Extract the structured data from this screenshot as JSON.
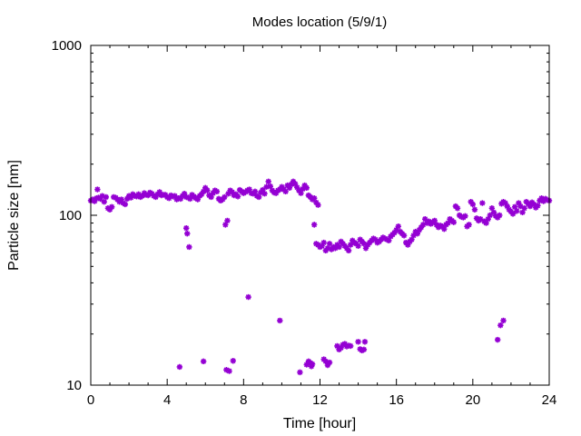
{
  "chart_data": {
    "type": "scatter",
    "title": "Modes location (5/9/1)",
    "xlabel": "Time [hour]",
    "ylabel": "Particle size [nm]",
    "xlim": [
      0,
      24
    ],
    "ylim": [
      10,
      1000
    ],
    "y_scale": "log",
    "grid": false,
    "x_ticks": [
      0,
      4,
      8,
      12,
      16,
      20,
      24
    ],
    "x_tick_labels": [
      "0",
      "4",
      "8",
      "12",
      "16",
      "20",
      "24"
    ],
    "y_ticks": [
      10,
      100,
      1000
    ],
    "y_tick_labels": [
      "10",
      "100",
      "1000"
    ],
    "series": [
      {
        "color": "#9400d3",
        "marker": "star",
        "points": [
          [
            0.0,
            122
          ],
          [
            0.1,
            124
          ],
          [
            0.2,
            121
          ],
          [
            0.3,
            126
          ],
          [
            0.4,
            127
          ],
          [
            0.5,
            125
          ],
          [
            0.35,
            142
          ],
          [
            0.6,
            130
          ],
          [
            0.7,
            120
          ],
          [
            0.8,
            128
          ],
          [
            0.9,
            110
          ],
          [
            1.0,
            108
          ],
          [
            1.1,
            112
          ],
          [
            1.2,
            128
          ],
          [
            1.3,
            127
          ],
          [
            1.4,
            124
          ],
          [
            1.5,
            120
          ],
          [
            1.6,
            124
          ],
          [
            1.7,
            118
          ],
          [
            1.8,
            116
          ],
          [
            1.9,
            125
          ],
          [
            2.0,
            130
          ],
          [
            2.1,
            127
          ],
          [
            2.2,
            133
          ],
          [
            2.3,
            130
          ],
          [
            2.4,
            129
          ],
          [
            2.5,
            133
          ],
          [
            2.6,
            128
          ],
          [
            2.7,
            130
          ],
          [
            2.8,
            135
          ],
          [
            2.9,
            132
          ],
          [
            3.0,
            131
          ],
          [
            3.1,
            136
          ],
          [
            3.2,
            134
          ],
          [
            3.3,
            130
          ],
          [
            3.4,
            128
          ],
          [
            3.5,
            133
          ],
          [
            3.6,
            137
          ],
          [
            3.7,
            131
          ],
          [
            3.8,
            132
          ],
          [
            3.9,
            132
          ],
          [
            4.0,
            128
          ],
          [
            4.1,
            126
          ],
          [
            4.2,
            131
          ],
          [
            4.3,
            129
          ],
          [
            4.4,
            130
          ],
          [
            4.5,
            124
          ],
          [
            4.6,
            126
          ],
          [
            4.7,
            125
          ],
          [
            4.8,
            130
          ],
          [
            4.9,
            134
          ],
          [
            5.0,
            128
          ],
          [
            5.1,
            127
          ],
          [
            5.2,
            125
          ],
          [
            5.3,
            132
          ],
          [
            5.4,
            129
          ],
          [
            5.5,
            126
          ],
          [
            5.6,
            124
          ],
          [
            5.7,
            130
          ],
          [
            5.8,
            133
          ],
          [
            5.9,
            138
          ],
          [
            6.0,
            145
          ],
          [
            6.1,
            140
          ],
          [
            6.2,
            131
          ],
          [
            6.3,
            128
          ],
          [
            6.4,
            135
          ],
          [
            6.5,
            140
          ],
          [
            6.6,
            138
          ],
          [
            6.7,
            125
          ],
          [
            6.8,
            122
          ],
          [
            6.9,
            124
          ],
          [
            7.0,
            128
          ],
          [
            7.2,
            134
          ],
          [
            7.3,
            140
          ],
          [
            7.4,
            137
          ],
          [
            7.5,
            131
          ],
          [
            7.6,
            133
          ],
          [
            7.7,
            129
          ],
          [
            7.8,
            141
          ],
          [
            7.9,
            138
          ],
          [
            8.0,
            135
          ],
          [
            8.1,
            137
          ],
          [
            8.2,
            140
          ],
          [
            8.3,
            142
          ],
          [
            8.4,
            135
          ],
          [
            8.5,
            134
          ],
          [
            8.6,
            138
          ],
          [
            8.7,
            130
          ],
          [
            8.8,
            128
          ],
          [
            8.9,
            136
          ],
          [
            9.0,
            141
          ],
          [
            9.1,
            134
          ],
          [
            9.2,
            147
          ],
          [
            9.3,
            158
          ],
          [
            9.4,
            148
          ],
          [
            9.5,
            140
          ],
          [
            9.6,
            136
          ],
          [
            9.7,
            135
          ],
          [
            9.8,
            140
          ],
          [
            9.9,
            142
          ],
          [
            10.0,
            147
          ],
          [
            10.1,
            142
          ],
          [
            10.2,
            138
          ],
          [
            10.3,
            150
          ],
          [
            10.4,
            145
          ],
          [
            10.5,
            152
          ],
          [
            10.6,
            158
          ],
          [
            10.7,
            153
          ],
          [
            10.8,
            146
          ],
          [
            10.9,
            140
          ],
          [
            11.0,
            135
          ],
          [
            11.1,
            143
          ],
          [
            11.2,
            150
          ],
          [
            11.3,
            145
          ],
          [
            11.4,
            131
          ],
          [
            11.5,
            128
          ],
          [
            11.6,
            124
          ],
          [
            11.7,
            126
          ],
          [
            11.8,
            119
          ],
          [
            11.9,
            115
          ],
          [
            11.7,
            88
          ],
          [
            11.8,
            68
          ],
          [
            11.9,
            67
          ],
          [
            12.0,
            65
          ],
          [
            12.1,
            66
          ],
          [
            12.2,
            69
          ],
          [
            12.3,
            62
          ],
          [
            12.4,
            64
          ],
          [
            12.5,
            68
          ],
          [
            12.6,
            63
          ],
          [
            12.7,
            65
          ],
          [
            12.8,
            64
          ],
          [
            12.9,
            67
          ],
          [
            13.0,
            65
          ],
          [
            13.1,
            70
          ],
          [
            13.2,
            68
          ],
          [
            13.3,
            66
          ],
          [
            13.4,
            64
          ],
          [
            13.5,
            62
          ],
          [
            13.6,
            67
          ],
          [
            13.7,
            71
          ],
          [
            13.8,
            69
          ],
          [
            13.9,
            68
          ],
          [
            14.0,
            66
          ],
          [
            14.1,
            72
          ],
          [
            14.2,
            70
          ],
          [
            14.3,
            68
          ],
          [
            14.4,
            64
          ],
          [
            14.5,
            67
          ],
          [
            14.6,
            69
          ],
          [
            14.7,
            71
          ],
          [
            14.8,
            73
          ],
          [
            14.9,
            72
          ],
          [
            15.0,
            69
          ],
          [
            15.1,
            70
          ],
          [
            15.2,
            72
          ],
          [
            15.3,
            74
          ],
          [
            15.4,
            73
          ],
          [
            15.5,
            72
          ],
          [
            15.6,
            71
          ],
          [
            15.7,
            75
          ],
          [
            15.8,
            77
          ],
          [
            15.9,
            79
          ],
          [
            16.0,
            82
          ],
          [
            16.1,
            86
          ],
          [
            16.2,
            80
          ],
          [
            16.3,
            78
          ],
          [
            16.4,
            76
          ],
          [
            16.5,
            69
          ],
          [
            16.6,
            67
          ],
          [
            16.7,
            70
          ],
          [
            16.8,
            72
          ],
          [
            16.9,
            76
          ],
          [
            17.0,
            80
          ],
          [
            17.1,
            78
          ],
          [
            17.2,
            82
          ],
          [
            17.3,
            85
          ],
          [
            17.4,
            88
          ],
          [
            17.5,
            95
          ],
          [
            17.6,
            90
          ],
          [
            17.7,
            92
          ],
          [
            17.8,
            89
          ],
          [
            17.9,
            91
          ],
          [
            18.0,
            93
          ],
          [
            18.1,
            88
          ],
          [
            18.2,
            85
          ],
          [
            18.3,
            87
          ],
          [
            18.4,
            86
          ],
          [
            18.5,
            83
          ],
          [
            18.6,
            88
          ],
          [
            18.7,
            90
          ],
          [
            18.8,
            95
          ],
          [
            18.9,
            93
          ],
          [
            19.0,
            91
          ],
          [
            19.1,
            113
          ],
          [
            19.2,
            110
          ],
          [
            19.3,
            100
          ],
          [
            19.4,
            98
          ],
          [
            19.5,
            97
          ],
          [
            19.6,
            99
          ],
          [
            19.7,
            86
          ],
          [
            19.8,
            88
          ],
          [
            19.9,
            120
          ],
          [
            20.0,
            116
          ],
          [
            20.1,
            108
          ],
          [
            20.2,
            96
          ],
          [
            20.3,
            93
          ],
          [
            20.4,
            95
          ],
          [
            20.5,
            118
          ],
          [
            20.6,
            92
          ],
          [
            20.7,
            90
          ],
          [
            20.8,
            95
          ],
          [
            20.9,
            100
          ],
          [
            21.0,
            110
          ],
          [
            21.1,
            104
          ],
          [
            21.2,
            99
          ],
          [
            21.3,
            97
          ],
          [
            21.4,
            100
          ],
          [
            21.5,
            117
          ],
          [
            21.6,
            120
          ],
          [
            21.7,
            118
          ],
          [
            21.8,
            113
          ],
          [
            21.9,
            108
          ],
          [
            22.0,
            105
          ],
          [
            22.1,
            102
          ],
          [
            22.2,
            112
          ],
          [
            22.3,
            106
          ],
          [
            22.4,
            118
          ],
          [
            22.5,
            113
          ],
          [
            22.6,
            104
          ],
          [
            22.7,
            110
          ],
          [
            22.8,
            120
          ],
          [
            22.9,
            117
          ],
          [
            23.0,
            113
          ],
          [
            23.1,
            119
          ],
          [
            23.2,
            116
          ],
          [
            23.3,
            111
          ],
          [
            23.4,
            114
          ],
          [
            23.5,
            122
          ],
          [
            23.6,
            126
          ],
          [
            23.7,
            121
          ],
          [
            23.8,
            125
          ],
          [
            23.9,
            123
          ],
          [
            24.0,
            122
          ],
          [
            5.0,
            84
          ],
          [
            5.05,
            78
          ],
          [
            5.15,
            65
          ],
          [
            4.65,
            12.8
          ],
          [
            5.9,
            13.8
          ],
          [
            7.05,
            88
          ],
          [
            7.15,
            93
          ],
          [
            7.1,
            12.3
          ],
          [
            7.25,
            12.1
          ],
          [
            7.45,
            13.9
          ],
          [
            8.25,
            33
          ],
          [
            9.9,
            24
          ],
          [
            10.95,
            11.9
          ],
          [
            11.3,
            13.2
          ],
          [
            11.4,
            13.8
          ],
          [
            11.5,
            13.5
          ],
          [
            11.55,
            12.9
          ],
          [
            11.6,
            13.3
          ],
          [
            12.2,
            14.2
          ],
          [
            12.3,
            13.8
          ],
          [
            12.4,
            13.1
          ],
          [
            12.5,
            13.6
          ],
          [
            12.9,
            17.0
          ],
          [
            13.0,
            16.2
          ],
          [
            13.1,
            16.6
          ],
          [
            13.2,
            17.3
          ],
          [
            13.3,
            17.5
          ],
          [
            13.4,
            16.9
          ],
          [
            13.5,
            17.1
          ],
          [
            13.6,
            17.0
          ],
          [
            14.0,
            18.0
          ],
          [
            14.1,
            16.3
          ],
          [
            14.2,
            16.0
          ],
          [
            14.3,
            16.2
          ],
          [
            14.35,
            18.0
          ],
          [
            21.3,
            18.5
          ],
          [
            21.45,
            22.5
          ],
          [
            21.6,
            24.0
          ]
        ]
      }
    ]
  }
}
